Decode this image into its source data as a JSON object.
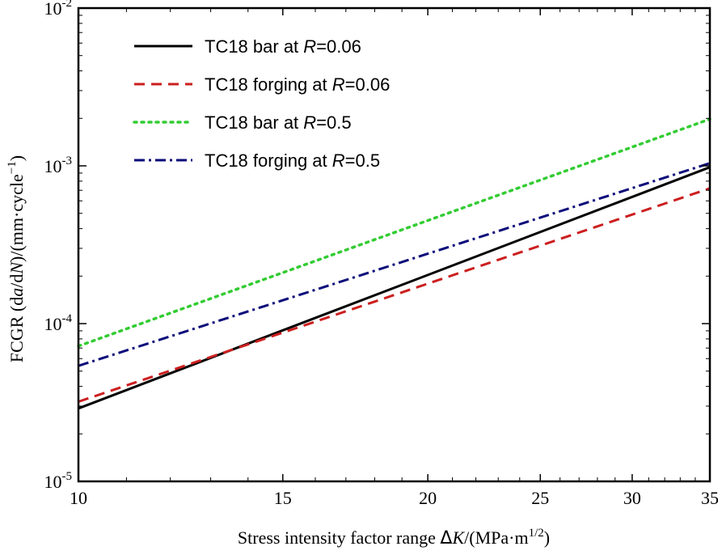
{
  "chart_data": {
    "type": "line",
    "xlabel": "Stress intensity factor range",
    "xlabel_symbol": "Δ",
    "xlabel_var": "K",
    "xlabel_unit": "/(MPa·m",
    "xlabel_unit_sup": "1/2",
    "xlabel_unit_end": ")",
    "ylabel_pre": "FCGR (d",
    "ylabel_a": "a",
    "ylabel_mid": "/d",
    "ylabel_N": "N",
    "ylabel_post": ")/(mm·cycle",
    "ylabel_sup": "−1",
    "ylabel_end": ")",
    "x_scale": "log",
    "y_scale": "log",
    "xlim": [
      10,
      35
    ],
    "ylim": [
      1e-05,
      0.01
    ],
    "x_ticks": [
      10,
      15,
      20,
      25,
      30,
      35
    ],
    "x_tick_labels": [
      "10",
      "15",
      "20",
      "25",
      "30",
      "35"
    ],
    "y_ticks": [
      1e-05,
      0.0001,
      0.001,
      0.01
    ],
    "y_tick_base": "10",
    "y_tick_exponents": [
      "-5",
      "-4",
      "-3",
      "-2"
    ],
    "grid": false,
    "legend_position": "top-left",
    "series": [
      {
        "name_pre": "TC18 bar at ",
        "name_var": "R",
        "name_post": "=0.06",
        "color": "#000000",
        "style": "solid",
        "x": [
          10,
          35
        ],
        "y": [
          2.9e-05,
          0.00098
        ]
      },
      {
        "name_pre": "TC18 forging at ",
        "name_var": "R",
        "name_post": "=0.06",
        "color": "#cc1f1f",
        "style": "dashed",
        "x": [
          10,
          35
        ],
        "y": [
          3.2e-05,
          0.00072
        ]
      },
      {
        "name_pre": "TC18 bar at ",
        "name_var": "R",
        "name_post": "=0.5",
        "color": "#33cc33",
        "style": "dotted",
        "x": [
          10,
          35
        ],
        "y": [
          7.2e-05,
          0.00198
        ]
      },
      {
        "name_pre": "TC18 forging at ",
        "name_var": "R",
        "name_post": "=0.5",
        "color": "#0b0b7a",
        "style": "dashdot",
        "x": [
          10,
          35
        ],
        "y": [
          5.4e-05,
          0.00104
        ]
      }
    ]
  }
}
